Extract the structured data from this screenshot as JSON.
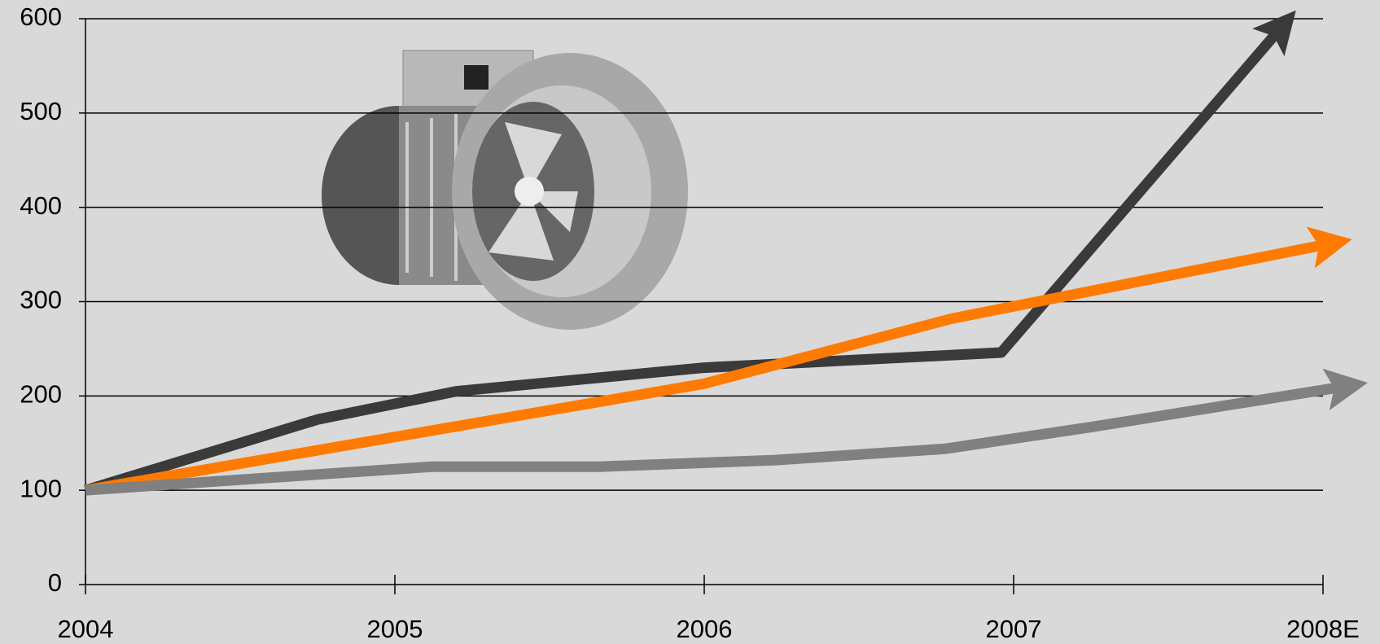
{
  "chart_data": {
    "type": "line",
    "xlim": [
      2004,
      2008
    ],
    "xticks": [
      2004,
      2005,
      2006,
      2007,
      {
        "value": 2008,
        "label": "2008E"
      }
    ],
    "ylim": [
      0,
      600
    ],
    "yticks": [
      0,
      100,
      200,
      300,
      400,
      500,
      600
    ],
    "grid": true,
    "series": [
      {
        "color": "#3a3a3a",
        "x": [
          2004,
          2004.75,
          2005.2,
          2006,
          2006.96,
          2007.85
        ],
        "values": [
          100,
          175,
          205,
          230,
          246,
          585
        ]
      },
      {
        "color": "#ff7a00",
        "x": [
          2004,
          2006,
          2006.8,
          2007.4,
          2008
        ],
        "values": [
          100,
          213,
          282,
          321,
          360
        ]
      },
      {
        "color": "#808080",
        "x": [
          2004,
          2005.12,
          2005.66,
          2006.23,
          2006.78,
          2007.25,
          2008.05
        ],
        "values": [
          100,
          125,
          125,
          132,
          144,
          167,
          209
        ]
      }
    ]
  }
}
